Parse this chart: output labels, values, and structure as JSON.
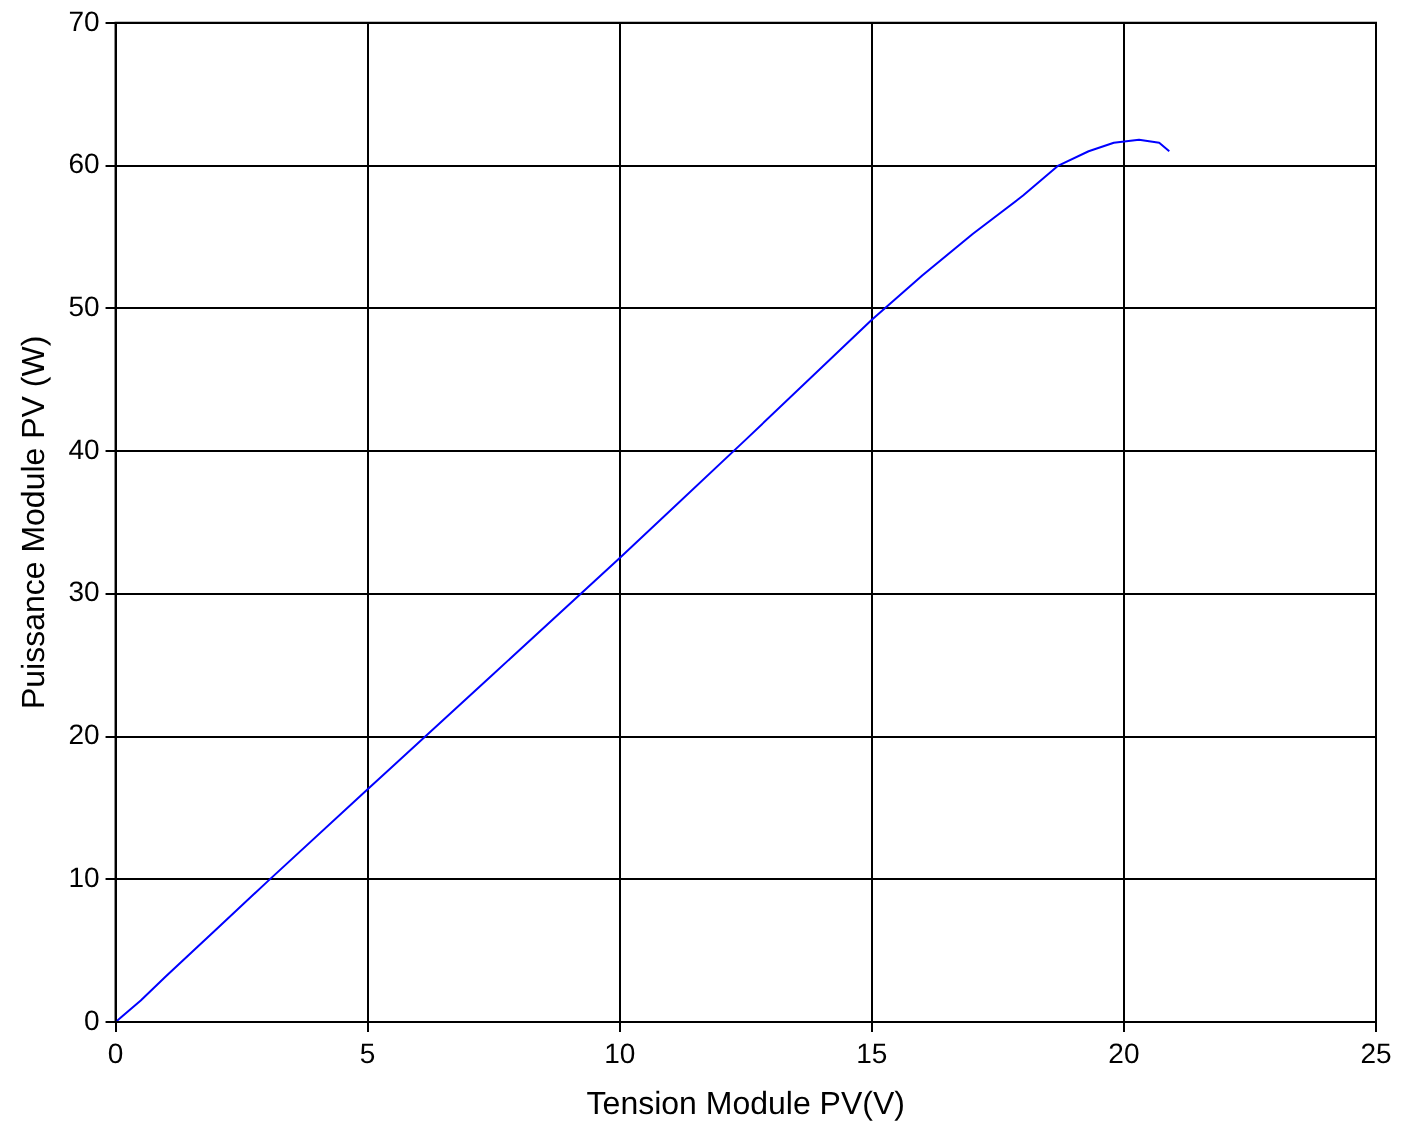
{
  "chart_data": {
    "type": "line",
    "xlabel": "Tension Module PV(V)",
    "ylabel": "Puissance Module PV (W)",
    "x": [
      0,
      0.5,
      1,
      2,
      3,
      5,
      7.5,
      10,
      12.5,
      15,
      16,
      17,
      18,
      18.7,
      19.3,
      19.8,
      20.3,
      20.7,
      20.9
    ],
    "series": [
      {
        "color": "#0000ff",
        "values": [
          0,
          1.5,
          3.2,
          6.5,
          9.8,
          16.3,
          24.4,
          32.5,
          40.8,
          49.2,
          52.3,
          55.2,
          57.9,
          60,
          61,
          61.6,
          61.8,
          61.6,
          61.0
        ]
      }
    ],
    "xlim": [
      0,
      25
    ],
    "xticks": [
      0,
      5,
      10,
      15,
      20,
      25
    ],
    "ylim": [
      0,
      70
    ],
    "yticks": [
      0,
      10,
      20,
      30,
      40,
      50,
      60,
      70
    ],
    "grid": true,
    "legend": false,
    "marker": "none",
    "line_style": "solid"
  }
}
